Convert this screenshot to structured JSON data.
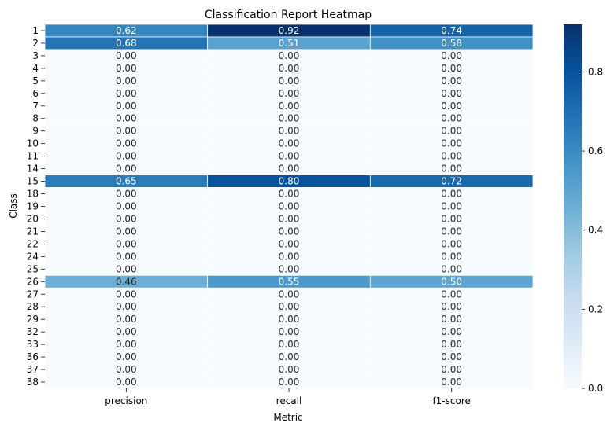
{
  "chart_data": {
    "type": "heatmap",
    "title": "Classification Report Heatmap",
    "xlabel": "Metric",
    "ylabel": "Class",
    "columns": [
      "precision",
      "recall",
      "f1-score"
    ],
    "rows": [
      "1",
      "2",
      "3",
      "4",
      "5",
      "6",
      "7",
      "8",
      "9",
      "10",
      "11",
      "14",
      "15",
      "18",
      "19",
      "20",
      "21",
      "22",
      "24",
      "25",
      "26",
      "27",
      "28",
      "29",
      "32",
      "33",
      "36",
      "37",
      "38"
    ],
    "values": [
      [
        0.62,
        0.92,
        0.74
      ],
      [
        0.68,
        0.51,
        0.58
      ],
      [
        0.0,
        0.0,
        0.0
      ],
      [
        0.0,
        0.0,
        0.0
      ],
      [
        0.0,
        0.0,
        0.0
      ],
      [
        0.0,
        0.0,
        0.0
      ],
      [
        0.0,
        0.0,
        0.0
      ],
      [
        0.0,
        0.0,
        0.0
      ],
      [
        0.0,
        0.0,
        0.0
      ],
      [
        0.0,
        0.0,
        0.0
      ],
      [
        0.0,
        0.0,
        0.0
      ],
      [
        0.0,
        0.0,
        0.0
      ],
      [
        0.65,
        0.8,
        0.72
      ],
      [
        0.0,
        0.0,
        0.0
      ],
      [
        0.0,
        0.0,
        0.0
      ],
      [
        0.0,
        0.0,
        0.0
      ],
      [
        0.0,
        0.0,
        0.0
      ],
      [
        0.0,
        0.0,
        0.0
      ],
      [
        0.0,
        0.0,
        0.0
      ],
      [
        0.0,
        0.0,
        0.0
      ],
      [
        0.46,
        0.55,
        0.5
      ],
      [
        0.0,
        0.0,
        0.0
      ],
      [
        0.0,
        0.0,
        0.0
      ],
      [
        0.0,
        0.0,
        0.0
      ],
      [
        0.0,
        0.0,
        0.0
      ],
      [
        0.0,
        0.0,
        0.0
      ],
      [
        0.0,
        0.0,
        0.0
      ],
      [
        0.0,
        0.0,
        0.0
      ],
      [
        0.0,
        0.0,
        0.0
      ]
    ],
    "value_format": "0.00",
    "colormap": "Blues",
    "color_range": [
      0,
      0.92
    ],
    "colorbar_ticks": [
      "0.0",
      "0.2",
      "0.4",
      "0.6",
      "0.8"
    ],
    "grid": false
  }
}
